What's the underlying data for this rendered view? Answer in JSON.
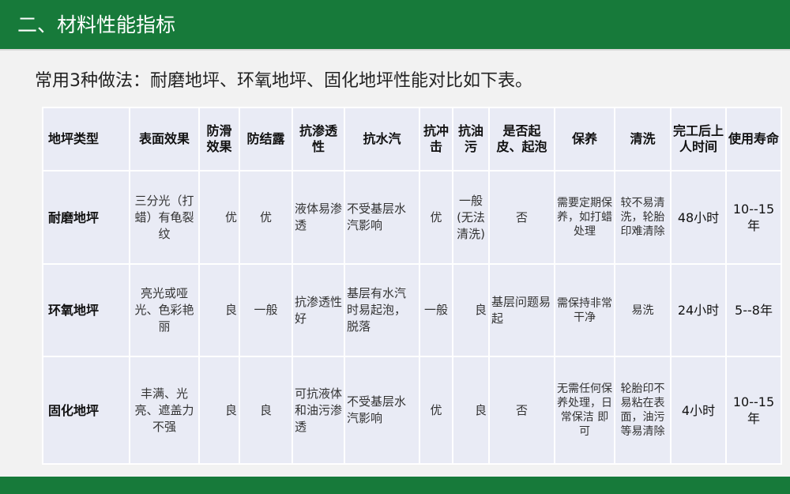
{
  "header": {
    "title": "二、材料性能指标",
    "accent_color": "#177a3a"
  },
  "subtitle": "常用3种做法：耐磨地坪、环氧地坪、固化地坪性能对比如下表。",
  "table": {
    "columns": [
      "地坪类型",
      "表面效果",
      "防滑效果",
      "防结露",
      "抗渗透性",
      "抗水汽",
      "抗冲击",
      "抗油污",
      "是否起皮、起泡",
      "保养",
      "清洗",
      "完工后上人时间",
      "使用寿命"
    ],
    "rows": [
      [
        "耐磨地坪",
        "三分光（打蜡）有龟裂纹",
        "优",
        "优",
        "液体易渗透",
        "不受基层水汽影响",
        "优",
        "一般(无法清洗)",
        "否",
        "需要定期保养，如打蜡处理",
        "较不易清洗，轮胎印难清除",
        "48小时",
        "10--15年"
      ],
      [
        "环氧地坪",
        "亮光或哑光、色彩艳丽",
        "良",
        "一般",
        "抗渗透性好",
        "基层有水汽时易起泡，脱落",
        "一般",
        "良",
        "基层问题易起",
        "需保持非常干净",
        "易洗",
        "24小时",
        "5--8年"
      ],
      [
        "固化地坪",
        "丰满、光亮、遮盖力不强",
        "良",
        "良",
        "可抗液体和油污渗透",
        "不受基层水汽影响",
        "优",
        "良",
        "否",
        "无需任何保养处理，日常保洁 即可",
        "轮胎印不易粘在表面，油污等易清除",
        "4小时",
        "10--15年"
      ]
    ]
  }
}
